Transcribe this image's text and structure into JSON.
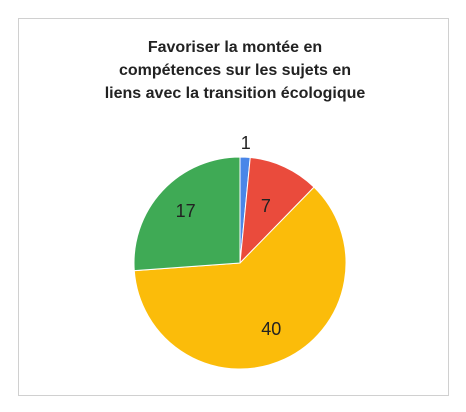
{
  "chart_data": {
    "type": "pie",
    "title": [
      "Favoriser la montée en",
      "compétences sur les sujets en",
      "liens avec la transition écologique"
    ],
    "categories": [
      null,
      null,
      null,
      null
    ],
    "values": [
      1,
      7,
      40,
      17
    ],
    "colors": [
      "#4a86e8",
      "#ea4b3c",
      "#fbbc0a",
      "#3faa55"
    ]
  }
}
